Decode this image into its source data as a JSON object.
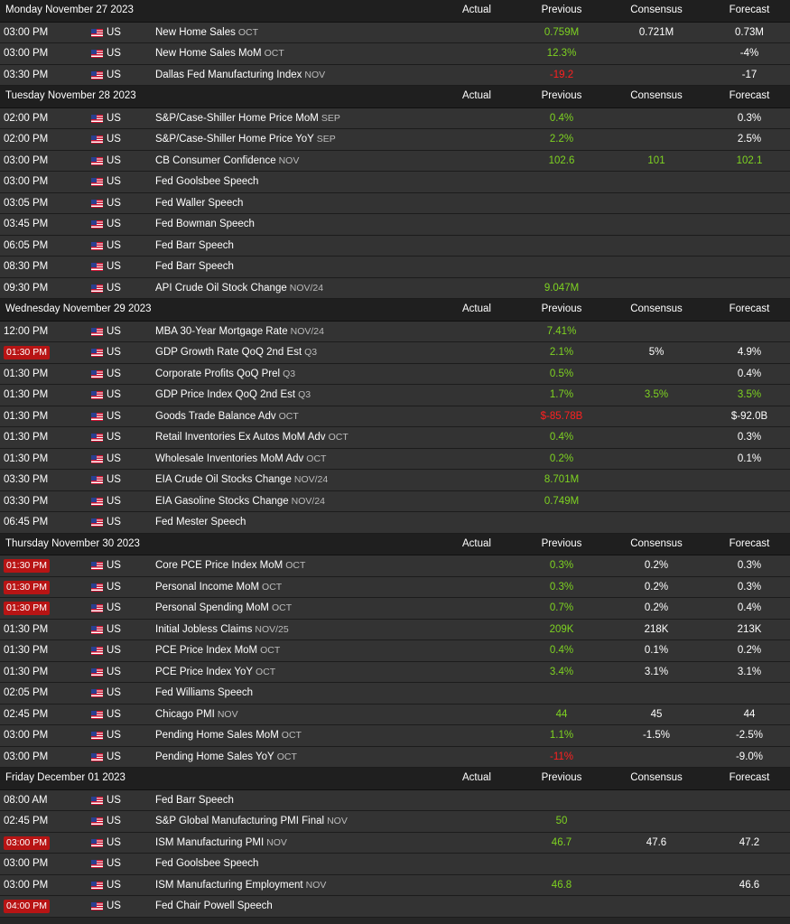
{
  "columns": {
    "actual": "Actual",
    "previous": "Previous",
    "consensus": "Consensus",
    "forecast": "Forecast"
  },
  "colors": {
    "positive": "#7ed321",
    "negative": "#ff2020",
    "badge": "#b81414"
  },
  "days": [
    {
      "date": "Monday November 27 2023",
      "events": [
        {
          "time": "03:00 PM",
          "highlight": false,
          "country": "US",
          "name": "New Home Sales",
          "period": "OCT",
          "actual": "",
          "previous": "0.759M",
          "previous_tone": "pos",
          "consensus": "0.721M",
          "consensus_tone": "neu",
          "forecast": "0.73M",
          "forecast_tone": "neu"
        },
        {
          "time": "03:00 PM",
          "highlight": false,
          "country": "US",
          "name": "New Home Sales MoM",
          "period": "OCT",
          "actual": "",
          "previous": "12.3%",
          "previous_tone": "pos",
          "consensus": "",
          "consensus_tone": "neu",
          "forecast": "-4%",
          "forecast_tone": "neu"
        },
        {
          "time": "03:30 PM",
          "highlight": false,
          "country": "US",
          "name": "Dallas Fed Manufacturing Index",
          "period": "NOV",
          "actual": "",
          "previous": "-19.2",
          "previous_tone": "neg",
          "consensus": "",
          "consensus_tone": "neu",
          "forecast": "-17",
          "forecast_tone": "neu"
        }
      ]
    },
    {
      "date": "Tuesday November 28 2023",
      "events": [
        {
          "time": "02:00 PM",
          "highlight": false,
          "country": "US",
          "name": "S&P/Case-Shiller Home Price MoM",
          "period": "SEP",
          "actual": "",
          "previous": "0.4%",
          "previous_tone": "pos",
          "consensus": "",
          "consensus_tone": "neu",
          "forecast": "0.3%",
          "forecast_tone": "neu"
        },
        {
          "time": "02:00 PM",
          "highlight": false,
          "country": "US",
          "name": "S&P/Case-Shiller Home Price YoY",
          "period": "SEP",
          "actual": "",
          "previous": "2.2%",
          "previous_tone": "pos",
          "consensus": "",
          "consensus_tone": "neu",
          "forecast": "2.5%",
          "forecast_tone": "neu"
        },
        {
          "time": "03:00 PM",
          "highlight": false,
          "country": "US",
          "name": "CB Consumer Confidence",
          "period": "NOV",
          "actual": "",
          "previous": "102.6",
          "previous_tone": "pos",
          "consensus": "101",
          "consensus_tone": "pos",
          "forecast": "102.1",
          "forecast_tone": "pos"
        },
        {
          "time": "03:00 PM",
          "highlight": false,
          "country": "US",
          "name": "Fed Goolsbee Speech",
          "period": "",
          "actual": "",
          "previous": "",
          "previous_tone": "neu",
          "consensus": "",
          "consensus_tone": "neu",
          "forecast": "",
          "forecast_tone": "neu"
        },
        {
          "time": "03:05 PM",
          "highlight": false,
          "country": "US",
          "name": "Fed Waller Speech",
          "period": "",
          "actual": "",
          "previous": "",
          "previous_tone": "neu",
          "consensus": "",
          "consensus_tone": "neu",
          "forecast": "",
          "forecast_tone": "neu"
        },
        {
          "time": "03:45 PM",
          "highlight": false,
          "country": "US",
          "name": "Fed Bowman Speech",
          "period": "",
          "actual": "",
          "previous": "",
          "previous_tone": "neu",
          "consensus": "",
          "consensus_tone": "neu",
          "forecast": "",
          "forecast_tone": "neu"
        },
        {
          "time": "06:05 PM",
          "highlight": false,
          "country": "US",
          "name": "Fed Barr Speech",
          "period": "",
          "actual": "",
          "previous": "",
          "previous_tone": "neu",
          "consensus": "",
          "consensus_tone": "neu",
          "forecast": "",
          "forecast_tone": "neu"
        },
        {
          "time": "08:30 PM",
          "highlight": false,
          "country": "US",
          "name": "Fed Barr Speech",
          "period": "",
          "actual": "",
          "previous": "",
          "previous_tone": "neu",
          "consensus": "",
          "consensus_tone": "neu",
          "forecast": "",
          "forecast_tone": "neu"
        },
        {
          "time": "09:30 PM",
          "highlight": false,
          "country": "US",
          "name": "API Crude Oil Stock Change",
          "period": "NOV/24",
          "actual": "",
          "previous": "9.047M",
          "previous_tone": "pos",
          "consensus": "",
          "consensus_tone": "neu",
          "forecast": "",
          "forecast_tone": "neu"
        }
      ]
    },
    {
      "date": "Wednesday November 29 2023",
      "events": [
        {
          "time": "12:00 PM",
          "highlight": false,
          "country": "US",
          "name": "MBA 30-Year Mortgage Rate",
          "period": "NOV/24",
          "actual": "",
          "previous": "7.41%",
          "previous_tone": "pos",
          "consensus": "",
          "consensus_tone": "neu",
          "forecast": "",
          "forecast_tone": "neu"
        },
        {
          "time": "01:30 PM",
          "highlight": true,
          "country": "US",
          "name": "GDP Growth Rate QoQ 2nd Est",
          "period": "Q3",
          "actual": "",
          "previous": "2.1%",
          "previous_tone": "pos",
          "consensus": "5%",
          "consensus_tone": "neu",
          "forecast": "4.9%",
          "forecast_tone": "neu"
        },
        {
          "time": "01:30 PM",
          "highlight": false,
          "country": "US",
          "name": "Corporate Profits QoQ Prel",
          "period": "Q3",
          "actual": "",
          "previous": "0.5%",
          "previous_tone": "pos",
          "consensus": "",
          "consensus_tone": "neu",
          "forecast": "0.4%",
          "forecast_tone": "neu"
        },
        {
          "time": "01:30 PM",
          "highlight": false,
          "country": "US",
          "name": "GDP Price Index QoQ 2nd Est",
          "period": "Q3",
          "actual": "",
          "previous": "1.7%",
          "previous_tone": "pos",
          "consensus": "3.5%",
          "consensus_tone": "pos",
          "forecast": "3.5%",
          "forecast_tone": "pos"
        },
        {
          "time": "01:30 PM",
          "highlight": false,
          "country": "US",
          "name": "Goods Trade Balance Adv",
          "period": "OCT",
          "actual": "",
          "previous": "$-85.78B",
          "previous_tone": "neg",
          "consensus": "",
          "consensus_tone": "neu",
          "forecast": "$-92.0B",
          "forecast_tone": "neu"
        },
        {
          "time": "01:30 PM",
          "highlight": false,
          "country": "US",
          "name": "Retail Inventories Ex Autos MoM Adv",
          "period": "OCT",
          "actual": "",
          "previous": "0.4%",
          "previous_tone": "pos",
          "consensus": "",
          "consensus_tone": "neu",
          "forecast": "0.3%",
          "forecast_tone": "neu"
        },
        {
          "time": "01:30 PM",
          "highlight": false,
          "country": "US",
          "name": "Wholesale Inventories MoM Adv",
          "period": "OCT",
          "actual": "",
          "previous": "0.2%",
          "previous_tone": "pos",
          "consensus": "",
          "consensus_tone": "neu",
          "forecast": "0.1%",
          "forecast_tone": "neu"
        },
        {
          "time": "03:30 PM",
          "highlight": false,
          "country": "US",
          "name": "EIA Crude Oil Stocks Change",
          "period": "NOV/24",
          "actual": "",
          "previous": "8.701M",
          "previous_tone": "pos",
          "consensus": "",
          "consensus_tone": "neu",
          "forecast": "",
          "forecast_tone": "neu"
        },
        {
          "time": "03:30 PM",
          "highlight": false,
          "country": "US",
          "name": "EIA Gasoline Stocks Change",
          "period": "NOV/24",
          "actual": "",
          "previous": "0.749M",
          "previous_tone": "pos",
          "consensus": "",
          "consensus_tone": "neu",
          "forecast": "",
          "forecast_tone": "neu"
        },
        {
          "time": "06:45 PM",
          "highlight": false,
          "country": "US",
          "name": "Fed Mester Speech",
          "period": "",
          "actual": "",
          "previous": "",
          "previous_tone": "neu",
          "consensus": "",
          "consensus_tone": "neu",
          "forecast": "",
          "forecast_tone": "neu"
        }
      ]
    },
    {
      "date": "Thursday November 30 2023",
      "events": [
        {
          "time": "01:30 PM",
          "highlight": true,
          "country": "US",
          "name": "Core PCE Price Index MoM",
          "period": "OCT",
          "actual": "",
          "previous": "0.3%",
          "previous_tone": "pos",
          "consensus": "0.2%",
          "consensus_tone": "neu",
          "forecast": "0.3%",
          "forecast_tone": "neu"
        },
        {
          "time": "01:30 PM",
          "highlight": true,
          "country": "US",
          "name": "Personal Income MoM",
          "period": "OCT",
          "actual": "",
          "previous": "0.3%",
          "previous_tone": "pos",
          "consensus": "0.2%",
          "consensus_tone": "neu",
          "forecast": "0.3%",
          "forecast_tone": "neu"
        },
        {
          "time": "01:30 PM",
          "highlight": true,
          "country": "US",
          "name": "Personal Spending MoM",
          "period": "OCT",
          "actual": "",
          "previous": "0.7%",
          "previous_tone": "pos",
          "consensus": "0.2%",
          "consensus_tone": "neu",
          "forecast": "0.4%",
          "forecast_tone": "neu"
        },
        {
          "time": "01:30 PM",
          "highlight": false,
          "country": "US",
          "name": "Initial Jobless Claims",
          "period": "NOV/25",
          "actual": "",
          "previous": "209K",
          "previous_tone": "pos",
          "consensus": "218K",
          "consensus_tone": "neu",
          "forecast": "213K",
          "forecast_tone": "neu"
        },
        {
          "time": "01:30 PM",
          "highlight": false,
          "country": "US",
          "name": "PCE Price Index MoM",
          "period": "OCT",
          "actual": "",
          "previous": "0.4%",
          "previous_tone": "pos",
          "consensus": "0.1%",
          "consensus_tone": "neu",
          "forecast": "0.2%",
          "forecast_tone": "neu"
        },
        {
          "time": "01:30 PM",
          "highlight": false,
          "country": "US",
          "name": "PCE Price Index YoY",
          "period": "OCT",
          "actual": "",
          "previous": "3.4%",
          "previous_tone": "pos",
          "consensus": "3.1%",
          "consensus_tone": "neu",
          "forecast": "3.1%",
          "forecast_tone": "neu"
        },
        {
          "time": "02:05 PM",
          "highlight": false,
          "country": "US",
          "name": "Fed Williams Speech",
          "period": "",
          "actual": "",
          "previous": "",
          "previous_tone": "neu",
          "consensus": "",
          "consensus_tone": "neu",
          "forecast": "",
          "forecast_tone": "neu"
        },
        {
          "time": "02:45 PM",
          "highlight": false,
          "country": "US",
          "name": "Chicago PMI",
          "period": "NOV",
          "actual": "",
          "previous": "44",
          "previous_tone": "pos",
          "consensus": "45",
          "consensus_tone": "neu",
          "forecast": "44",
          "forecast_tone": "neu"
        },
        {
          "time": "03:00 PM",
          "highlight": false,
          "country": "US",
          "name": "Pending Home Sales MoM",
          "period": "OCT",
          "actual": "",
          "previous": "1.1%",
          "previous_tone": "pos",
          "consensus": "-1.5%",
          "consensus_tone": "neu",
          "forecast": "-2.5%",
          "forecast_tone": "neu"
        },
        {
          "time": "03:00 PM",
          "highlight": false,
          "country": "US",
          "name": "Pending Home Sales YoY",
          "period": "OCT",
          "actual": "",
          "previous": "-11%",
          "previous_tone": "neg",
          "consensus": "",
          "consensus_tone": "neu",
          "forecast": "-9.0%",
          "forecast_tone": "neu"
        }
      ]
    },
    {
      "date": "Friday December 01 2023",
      "events": [
        {
          "time": "08:00 AM",
          "highlight": false,
          "country": "US",
          "name": "Fed Barr Speech",
          "period": "",
          "actual": "",
          "previous": "",
          "previous_tone": "neu",
          "consensus": "",
          "consensus_tone": "neu",
          "forecast": "",
          "forecast_tone": "neu"
        },
        {
          "time": "02:45 PM",
          "highlight": false,
          "country": "US",
          "name": "S&P Global Manufacturing PMI Final",
          "period": "NOV",
          "actual": "",
          "previous": "50",
          "previous_tone": "pos",
          "consensus": "",
          "consensus_tone": "neu",
          "forecast": "",
          "forecast_tone": "neu"
        },
        {
          "time": "03:00 PM",
          "highlight": true,
          "country": "US",
          "name": "ISM Manufacturing PMI",
          "period": "NOV",
          "actual": "",
          "previous": "46.7",
          "previous_tone": "pos",
          "consensus": "47.6",
          "consensus_tone": "neu",
          "forecast": "47.2",
          "forecast_tone": "neu"
        },
        {
          "time": "03:00 PM",
          "highlight": false,
          "country": "US",
          "name": "Fed Goolsbee Speech",
          "period": "",
          "actual": "",
          "previous": "",
          "previous_tone": "neu",
          "consensus": "",
          "consensus_tone": "neu",
          "forecast": "",
          "forecast_tone": "neu"
        },
        {
          "time": "03:00 PM",
          "highlight": false,
          "country": "US",
          "name": "ISM Manufacturing Employment",
          "period": "NOV",
          "actual": "",
          "previous": "46.8",
          "previous_tone": "pos",
          "consensus": "",
          "consensus_tone": "neu",
          "forecast": "46.6",
          "forecast_tone": "neu"
        },
        {
          "time": "04:00 PM",
          "highlight": true,
          "country": "US",
          "name": "Fed Chair Powell Speech",
          "period": "",
          "actual": "",
          "previous": "",
          "previous_tone": "neu",
          "consensus": "",
          "consensus_tone": "neu",
          "forecast": "",
          "forecast_tone": "neu"
        }
      ]
    }
  ]
}
